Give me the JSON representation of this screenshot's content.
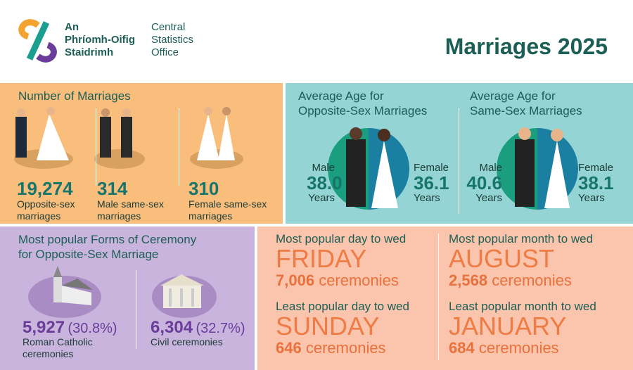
{
  "header": {
    "logo_irish": [
      "An",
      "Phríomh-Oifig",
      "Staidrimh"
    ],
    "logo_english": [
      "Central",
      "Statistics",
      "Office"
    ],
    "title": "Marriages 2025"
  },
  "number_of_marriages": {
    "title": "Number of Marriages",
    "items": [
      {
        "value": "19,274",
        "label": [
          "Opposite-sex",
          "marriages"
        ]
      },
      {
        "value": "314",
        "label": [
          "Male same-sex",
          "marriages"
        ]
      },
      {
        "value": "310",
        "label": [
          "Female same-sex",
          "marriages"
        ]
      }
    ]
  },
  "average_age": [
    {
      "title": [
        "Average Age for",
        "Opposite-Sex Marriages"
      ],
      "male": {
        "label": "Male",
        "value": "38.0",
        "unit": "Years"
      },
      "female": {
        "label": "Female",
        "value": "36.1",
        "unit": "Years"
      }
    },
    {
      "title": [
        "Average Age for",
        "Same-Sex Marriages"
      ],
      "male": {
        "label": "Male",
        "value": "40.6",
        "unit": "Years"
      },
      "female": {
        "label": "Female",
        "value": "38.1",
        "unit": "Years"
      }
    }
  ],
  "ceremony_forms": {
    "title": [
      "Most popular Forms of Ceremony",
      "for Opposite-Sex Marriage"
    ],
    "items": [
      {
        "value": "5,927",
        "percent": "(30.8%)",
        "label": [
          "Roman Catholic",
          "ceremonies"
        ]
      },
      {
        "value": "6,304",
        "percent": "(32.7%)",
        "label": [
          "Civil ceremonies"
        ]
      }
    ]
  },
  "popular": [
    {
      "title": "Most popular day to wed",
      "name": "FRIDAY",
      "count": "7,006",
      "unit": "ceremonies"
    },
    {
      "title": "Least popular day to wed",
      "name": "SUNDAY",
      "count": "646",
      "unit": "ceremonies"
    },
    {
      "title": "Most popular month to wed",
      "name": "AUGUST",
      "count": "2,568",
      "unit": "ceremonies"
    },
    {
      "title": "Least popular month to wed",
      "name": "JANUARY",
      "count": "684",
      "unit": "ceremonies"
    }
  ]
}
